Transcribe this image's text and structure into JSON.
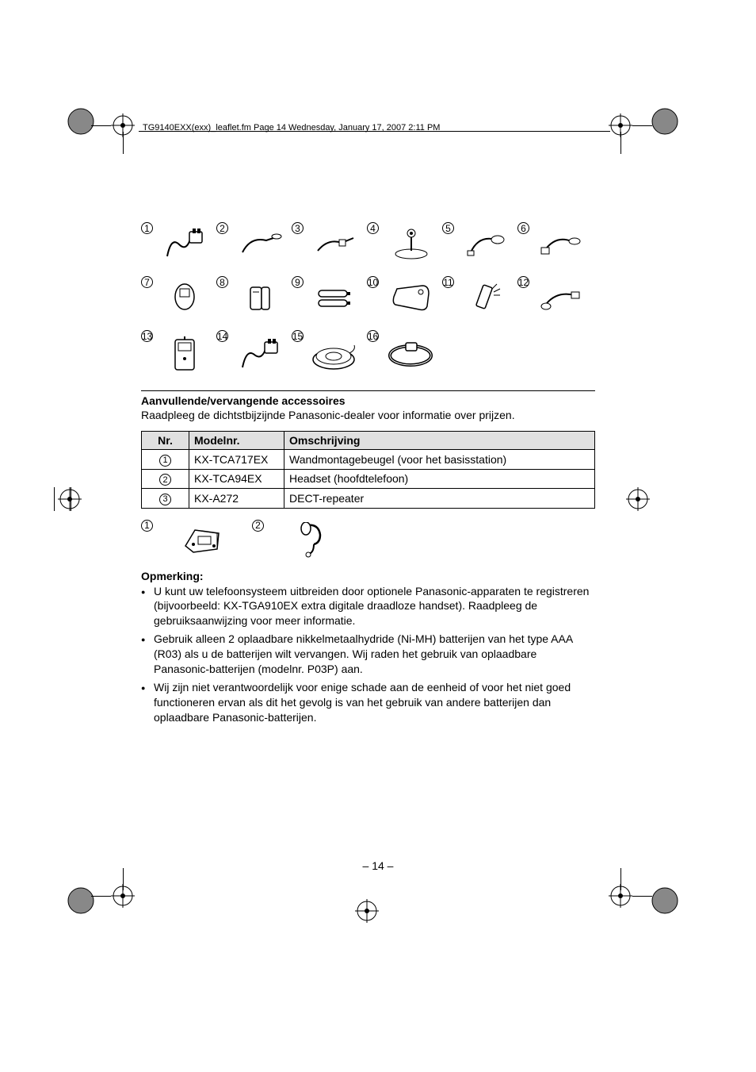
{
  "header": {
    "text": "TG9140EXX(exx)_leaflet.fm  Page 14  Wednesday, January 17, 2007  2:11 PM"
  },
  "icons": {
    "row1": [
      "1",
      "2",
      "3",
      "4",
      "5",
      "6"
    ],
    "row2": [
      "7",
      "8",
      "9",
      "10",
      "11",
      "12"
    ],
    "row3": [
      "13",
      "14",
      "15",
      "16"
    ]
  },
  "section": {
    "title": "Aanvullende/vervangende accessoires",
    "sub": "Raadpleeg de dichtstbijzijnde Panasonic-dealer voor informatie over prijzen."
  },
  "table": {
    "columns": [
      "Nr.",
      "Modelnr.",
      "Omschrijving"
    ],
    "rows": [
      {
        "nr": "1",
        "model": "KX-TCA717EX",
        "desc": "Wandmontagebeugel (voor het basisstation)"
      },
      {
        "nr": "2",
        "model": "KX-TCA94EX",
        "desc": "Headset (hoofdtelefoon)"
      },
      {
        "nr": "3",
        "model": "KX-A272",
        "desc": "DECT-repeater"
      }
    ]
  },
  "below": [
    "1",
    "2"
  ],
  "note": {
    "title": "Opmerking:",
    "bullets": [
      "U kunt uw telefoonsysteem uitbreiden door optionele Panasonic-apparaten te registreren (bijvoorbeeld: KX-TGA910EX extra digitale draadloze handset). Raadpleeg de gebruiksaanwijzing voor meer informatie.",
      "Gebruik alleen 2 oplaadbare nikkelmetaalhydride (Ni-MH) batterijen van het type AAA (R03) als u de batterijen wilt vervangen. Wij raden het gebruik van oplaadbare Panasonic-batterijen (modelnr. P03P) aan.",
      "Wij zijn niet verantwoordelijk voor enige schade aan de eenheid of voor het niet goed functioneren ervan als dit het gevolg is van het gebruik van andere batterijen dan oplaadbare Panasonic-batterijen."
    ]
  },
  "pageNumber": "– 14 –",
  "colors": {
    "gray_header_bg": "#e0e0e0",
    "text": "#000000"
  }
}
